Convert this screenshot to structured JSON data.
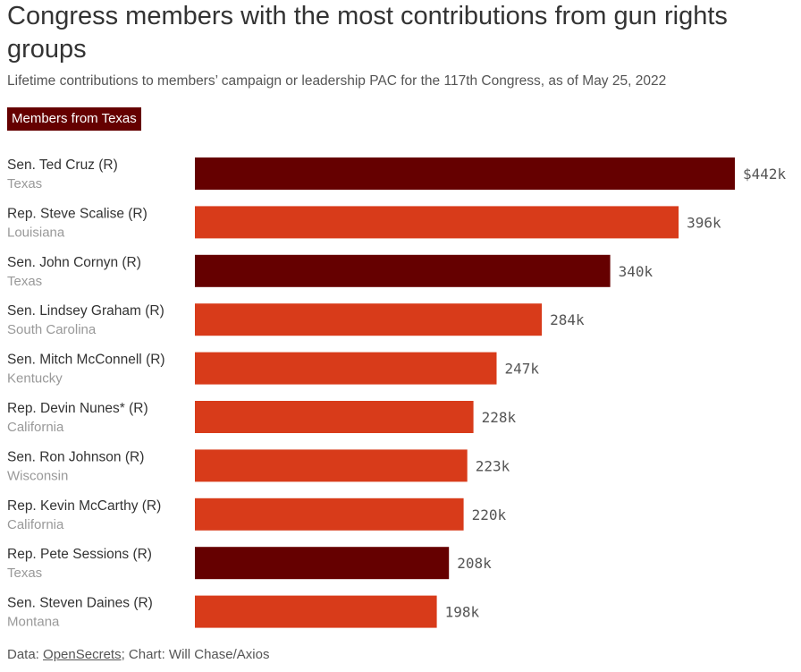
{
  "header": {
    "title": "Congress members with the most contributions from gun rights groups",
    "subtitle": "Lifetime contributions to members’ campaign or leadership PAC for the 117th Congress, as of May 25, 2022"
  },
  "legend": {
    "label": "Members from Texas"
  },
  "colors": {
    "texas": "#650000",
    "other": "#d83b1a",
    "name_text": "#333333",
    "state_text": "#999999",
    "value_text": "#555555"
  },
  "chart_data": {
    "type": "bar",
    "orientation": "horizontal",
    "title": "Congress members with the most contributions from gun rights groups",
    "subtitle": "Lifetime contributions to members’ campaign or leadership PAC for the 117th Congress, as of May 25, 2022",
    "xlabel": "",
    "ylabel": "",
    "xlim": [
      0,
      442
    ],
    "unit": "thousands of dollars",
    "legend": [
      "Members from Texas"
    ],
    "bars": [
      {
        "name": "Sen. Ted Cruz",
        "party": "(R)",
        "state": "Texas",
        "value": 442,
        "label": "$442k",
        "texas": true
      },
      {
        "name": "Rep. Steve Scalise",
        "party": "(R)",
        "state": "Louisiana",
        "value": 396,
        "label": "396k",
        "texas": false
      },
      {
        "name": "Sen. John Cornyn",
        "party": "(R)",
        "state": "Texas",
        "value": 340,
        "label": "340k",
        "texas": true
      },
      {
        "name": "Sen. Lindsey Graham",
        "party": "(R)",
        "state": "South Carolina",
        "value": 284,
        "label": "284k",
        "texas": false
      },
      {
        "name": "Sen. Mitch McConnell",
        "party": "(R)",
        "state": "Kentucky",
        "value": 247,
        "label": "247k",
        "texas": false
      },
      {
        "name": "Rep. Devin Nunes*",
        "party": "(R)",
        "state": "California",
        "value": 228,
        "label": "228k",
        "texas": false
      },
      {
        "name": "Sen. Ron Johnson",
        "party": "(R)",
        "state": "Wisconsin",
        "value": 223,
        "label": "223k",
        "texas": false
      },
      {
        "name": "Rep. Kevin McCarthy",
        "party": "(R)",
        "state": "California",
        "value": 220,
        "label": "220k",
        "texas": false
      },
      {
        "name": "Rep. Pete Sessions",
        "party": "(R)",
        "state": "Texas",
        "value": 208,
        "label": "208k",
        "texas": true
      },
      {
        "name": "Sen. Steven Daines",
        "party": "(R)",
        "state": "Montana",
        "value": 198,
        "label": "198k",
        "texas": false
      }
    ]
  },
  "footer": {
    "data_prefix": "Data: ",
    "source_name": "OpenSecrets",
    "credit": "; Chart: Will Chase/Axios"
  }
}
